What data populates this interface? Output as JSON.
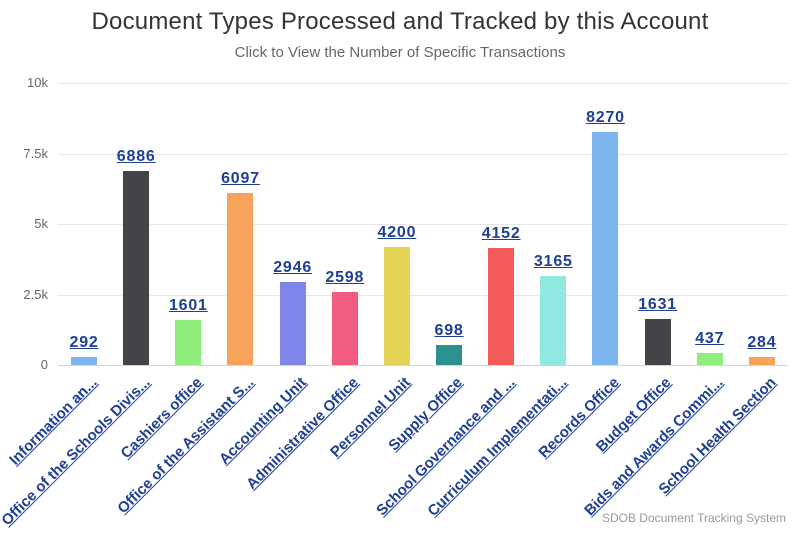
{
  "header": {
    "title": "Document Types Processed and Tracked by this Account",
    "subtitle": "Click to View the Number of Specific Transactions"
  },
  "credits": {
    "label": "SDOB Document Tracking System"
  },
  "colors": {
    "title_text": "#333333",
    "subtitle_text": "#666666",
    "axis_label_text": "#666666",
    "link_navy": "#1e3f94",
    "gridline": "#e6e6e6",
    "axis_line": "#ccd6eb",
    "credits_text": "#999999",
    "background": "#ffffff"
  },
  "chart_data": {
    "type": "bar",
    "title": "Document Types Processed and Tracked by this Account",
    "subtitle": "Click to View the Number of Specific Transactions",
    "xlabel": "",
    "ylabel": "",
    "ylim": [
      0,
      10000
    ],
    "grid": true,
    "legend": "none",
    "orientation": "vertical-columns",
    "data_labels_style": "underlined navy links above each bar",
    "category_labels_style": "underlined navy links rotated -45deg",
    "categories": [
      "Information an...",
      "Office of the Schools Divis...",
      "Cashiers office",
      "Office of the Assistant S...",
      "Accounting Unit",
      "Administrative Office",
      "Personnel Unit",
      "Supply Office",
      "School Governance and ...",
      "Curriculum Implementati...",
      "Records Office",
      "Budget Office",
      "Bids and Awards Commi...",
      "School Health Section"
    ],
    "values": [
      292,
      6886,
      1601,
      6097,
      2946,
      2598,
      4200,
      698,
      4152,
      3165,
      8270,
      1631,
      437,
      284
    ],
    "point_colors": [
      "#7cb5ec",
      "#434348",
      "#90ed7d",
      "#f7a35c",
      "#8085e9",
      "#f15c80",
      "#e4d354",
      "#2b908f",
      "#f45b5b",
      "#91e8e1",
      "#7cb5ec",
      "#434348",
      "#90ed7d",
      "#f7a35c"
    ],
    "yticks": [
      {
        "value": 0,
        "label": "0"
      },
      {
        "value": 2500,
        "label": "2.5k"
      },
      {
        "value": 5000,
        "label": "5k"
      },
      {
        "value": 7500,
        "label": "7.5k"
      },
      {
        "value": 10000,
        "label": "10k"
      }
    ]
  }
}
